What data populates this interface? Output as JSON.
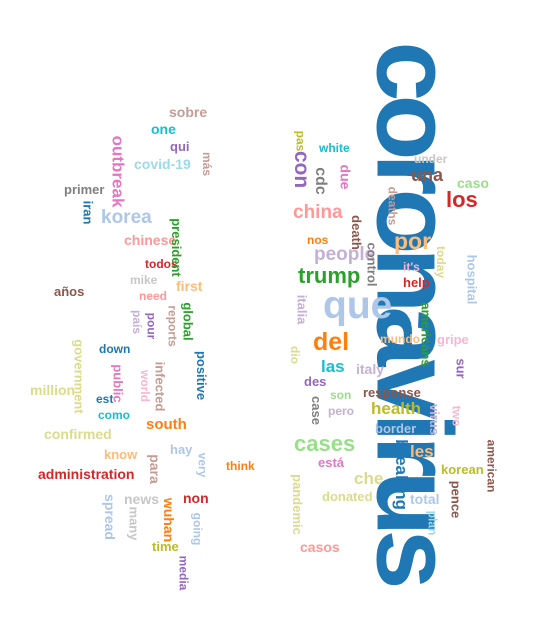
{
  "cloud": {
    "words": [
      {
        "text": "coronavirus",
        "color": "#1f77b4"
      },
      {
        "text": "que",
        "color": "#aec7e8"
      },
      {
        "text": "del",
        "color": "#ff7f0e"
      },
      {
        "text": "cases",
        "color": "#98df8a"
      },
      {
        "text": "trump",
        "color": "#2ca02c"
      },
      {
        "text": "china",
        "color": "#ff9896"
      },
      {
        "text": "por",
        "color": "#ffbb78"
      },
      {
        "text": "people",
        "color": "#c5b0d5"
      },
      {
        "text": "los",
        "color": "#d62728"
      },
      {
        "text": "una",
        "color": "#8c564b"
      },
      {
        "text": "korea",
        "color": "#aec7e8"
      },
      {
        "text": "con",
        "color": "#9467bd"
      },
      {
        "text": "outbreak",
        "color": "#e377c2"
      },
      {
        "text": "breaking",
        "color": "#1f77b4"
      },
      {
        "text": "health",
        "color": "#bcbd22"
      },
      {
        "text": "italy",
        "color": "#c5b0d5"
      },
      {
        "text": "south",
        "color": "#ff7f0e"
      },
      {
        "text": "sobre",
        "color": "#c49c94"
      },
      {
        "text": "one",
        "color": "#17becf"
      },
      {
        "text": "qui",
        "color": "#9467bd"
      },
      {
        "text": "covid-19",
        "color": "#9edae5"
      },
      {
        "text": "más",
        "color": "#c49c94"
      },
      {
        "text": "pas",
        "color": "#bcbd22"
      },
      {
        "text": "cdc",
        "color": "#7f7f7f"
      },
      {
        "text": "white",
        "color": "#17becf"
      },
      {
        "text": "due",
        "color": "#e377c2"
      },
      {
        "text": "under",
        "color": "#c7c7c7"
      },
      {
        "text": "caso",
        "color": "#98df8a"
      },
      {
        "text": "deaths",
        "color": "#c49c94"
      },
      {
        "text": "primer",
        "color": "#7f7f7f"
      },
      {
        "text": "iran",
        "color": "#1f77b4"
      },
      {
        "text": "president",
        "color": "#2ca02c"
      },
      {
        "text": "death",
        "color": "#8c564b"
      },
      {
        "text": "chinese",
        "color": "#ff9896"
      },
      {
        "text": "nos",
        "color": "#ff7f0e"
      },
      {
        "text": "control",
        "color": "#7f7f7f"
      },
      {
        "text": "today",
        "color": "#dbdb8d"
      },
      {
        "text": "hospital",
        "color": "#aec7e8"
      },
      {
        "text": "todos",
        "color": "#d62728"
      },
      {
        "text": "it's",
        "color": "#f7b6d2"
      },
      {
        "text": "first",
        "color": "#ffbb78"
      },
      {
        "text": "mike",
        "color": "#c7c7c7"
      },
      {
        "text": "help",
        "color": "#d62728"
      },
      {
        "text": "años",
        "color": "#8c564b"
      },
      {
        "text": "need",
        "color": "#ff9896"
      },
      {
        "text": "global",
        "color": "#2ca02c"
      },
      {
        "text": "italia",
        "color": "#c5b0d5"
      },
      {
        "text": "reports",
        "color": "#c49c94"
      },
      {
        "text": "americans",
        "color": "#2ca02c"
      },
      {
        "text": "país",
        "color": "#c5b0d5"
      },
      {
        "text": "pour",
        "color": "#9467bd"
      },
      {
        "text": "mundo",
        "color": "#ffbb78"
      },
      {
        "text": "gripe",
        "color": "#f7b6d2"
      },
      {
        "text": "dio",
        "color": "#dbdb8d"
      },
      {
        "text": "government",
        "color": "#dbdb8d"
      },
      {
        "text": "down",
        "color": "#1f77b4"
      },
      {
        "text": "positive",
        "color": "#1f77b4"
      },
      {
        "text": "las",
        "color": "#17becf"
      },
      {
        "text": "sur",
        "color": "#9467bd"
      },
      {
        "text": "des",
        "color": "#9467bd"
      },
      {
        "text": "public",
        "color": "#e377c2"
      },
      {
        "text": "infected",
        "color": "#c49c94"
      },
      {
        "text": "million",
        "color": "#dbdb8d"
      },
      {
        "text": "world",
        "color": "#f7b6d2"
      },
      {
        "text": "response",
        "color": "#8c564b"
      },
      {
        "text": "est",
        "color": "#1f77b4"
      },
      {
        "text": "son",
        "color": "#98df8a"
      },
      {
        "text": "case",
        "color": "#7f7f7f"
      },
      {
        "text": "pero",
        "color": "#c5b0d5"
      },
      {
        "text": "virus",
        "color": "#c5b0d5"
      },
      {
        "text": "two",
        "color": "#f7b6d2"
      },
      {
        "text": "como",
        "color": "#17becf"
      },
      {
        "text": "confirmed",
        "color": "#dbdb8d"
      },
      {
        "text": "border",
        "color": "#aec7e8"
      },
      {
        "text": "hay",
        "color": "#aec7e8"
      },
      {
        "text": "american",
        "color": "#8c564b"
      },
      {
        "text": "know",
        "color": "#ffbb78"
      },
      {
        "text": "para",
        "color": "#c49c94"
      },
      {
        "text": "very",
        "color": "#aec7e8"
      },
      {
        "text": "les",
        "color": "#ffbb78"
      },
      {
        "text": "está",
        "color": "#e377c2"
      },
      {
        "text": "korean",
        "color": "#bcbd22"
      },
      {
        "text": "administration",
        "color": "#d62728"
      },
      {
        "text": "think",
        "color": "#ff7f0e"
      },
      {
        "text": "che",
        "color": "#dbdb8d"
      },
      {
        "text": "pence",
        "color": "#8c564b"
      },
      {
        "text": "news",
        "color": "#c7c7c7"
      },
      {
        "text": "non",
        "color": "#d62728"
      },
      {
        "text": "pandemic",
        "color": "#dbdb8d"
      },
      {
        "text": "total",
        "color": "#aec7e8"
      },
      {
        "text": "spread",
        "color": "#aec7e8"
      },
      {
        "text": "many",
        "color": "#c7c7c7"
      },
      {
        "text": "wuhan",
        "color": "#ff7f0e"
      },
      {
        "text": "going",
        "color": "#aec7e8"
      },
      {
        "text": "donated",
        "color": "#dbdb8d"
      },
      {
        "text": "plan",
        "color": "#9edae5"
      },
      {
        "text": "time",
        "color": "#bcbd22"
      },
      {
        "text": "casos",
        "color": "#ff9896"
      },
      {
        "text": "media",
        "color": "#9467bd"
      }
    ]
  }
}
